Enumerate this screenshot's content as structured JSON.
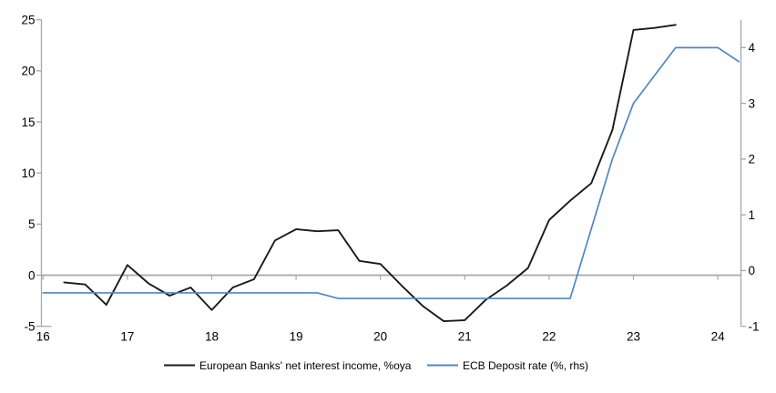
{
  "chart_data": {
    "type": "line",
    "frequency": "quarterly",
    "x_tick_labels": [
      "16",
      "17",
      "18",
      "19",
      "20",
      "21",
      "22",
      "23",
      "24"
    ],
    "left_axis": {
      "ticks": [
        -5,
        0,
        5,
        10,
        15,
        20,
        25
      ],
      "tick_labels": [
        "-5",
        "0",
        "5",
        "10",
        "15",
        "20",
        "25"
      ],
      "range": [
        -5,
        25
      ]
    },
    "right_axis": {
      "ticks": [
        -1,
        0,
        1,
        2,
        3,
        4
      ],
      "tick_labels": [
        "-1",
        "0",
        "1",
        "2",
        "3",
        "4"
      ],
      "range": [
        -1,
        4.5
      ]
    },
    "zero_line": true,
    "legend_position": "bottom",
    "series": [
      {
        "name": "European Banks' net interest income, %oya",
        "axis": "left",
        "color": "#1a1a1a",
        "start": "2016Q2",
        "values": [
          -0.7,
          -0.9,
          -2.9,
          1.0,
          -0.8,
          -2.0,
          -1.2,
          -3.4,
          -1.2,
          -0.4,
          3.4,
          4.5,
          4.3,
          4.4,
          1.4,
          1.1,
          -1.0,
          -3.0,
          -4.5,
          -4.4,
          -2.4,
          -1.0,
          0.7,
          5.4,
          7.3,
          9.0,
          14.2,
          24.0,
          24.2,
          24.5
        ]
      },
      {
        "name": "ECB Deposit rate (%, rhs)",
        "axis": "right",
        "color": "#4f86c6",
        "start": "2016Q1",
        "values": [
          -0.4,
          -0.4,
          -0.4,
          -0.4,
          -0.4,
          -0.4,
          -0.4,
          -0.4,
          -0.4,
          -0.4,
          -0.4,
          -0.4,
          -0.4,
          -0.4,
          -0.5,
          -0.5,
          -0.5,
          -0.5,
          -0.5,
          -0.5,
          -0.5,
          -0.5,
          -0.5,
          -0.5,
          -0.5,
          -0.5,
          0.75,
          2.0,
          3.0,
          3.5,
          4.0,
          4.0,
          4.0,
          3.75
        ]
      }
    ]
  },
  "colors": {
    "axis": "#a6a6a6",
    "text": "#000000"
  }
}
